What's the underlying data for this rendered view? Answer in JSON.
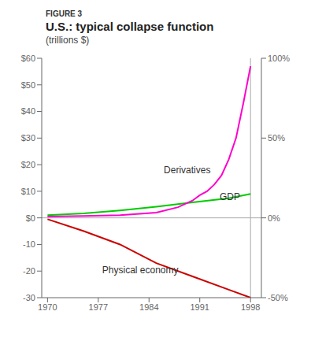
{
  "chart_data": {
    "type": "line",
    "title": "U.S.: typical collapse function",
    "subtitle": "(trillions $)",
    "xlim": [
      1969.2,
      1999.5
    ],
    "xticks": [
      1970,
      1977,
      1984,
      1991,
      1998
    ],
    "ylim": [
      -30,
      60
    ],
    "yticks": [
      -30,
      -20,
      -10,
      {
        "value": 0,
        "label": "$0"
      },
      {
        "value": 10,
        "label": "$10"
      },
      {
        "value": 20,
        "label": "$20"
      },
      {
        "value": 30,
        "label": "$30"
      },
      {
        "value": 40,
        "label": "$40"
      },
      {
        "value": 50,
        "label": "$50"
      },
      {
        "value": 60,
        "label": "$60"
      }
    ],
    "y2lim": [
      -50,
      100
    ],
    "y2ticks": [
      {
        "value": -50,
        "label": "-50%"
      },
      {
        "value": 0,
        "label": "0%"
      },
      {
        "value": 50,
        "label": "50%"
      },
      {
        "value": 100,
        "label": "100%"
      }
    ],
    "grid": false,
    "series": [
      {
        "color": "#00cc00",
        "x": [
          1970,
          1975,
          1980,
          1985,
          1990,
          1995,
          1998
        ],
        "values": [
          1.0,
          1.7,
          2.8,
          4.2,
          5.8,
          7.4,
          9.0
        ]
      },
      {
        "color": "#ff00cc",
        "x": [
          1970,
          1975,
          1980,
          1985,
          1988,
          1990,
          1991,
          1992,
          1993,
          1994,
          1995,
          1996,
          1997,
          1998
        ],
        "values": [
          0.5,
          0.7,
          1.0,
          2.0,
          4.0,
          6.5,
          8.5,
          10.0,
          12.5,
          16.0,
          22.0,
          30.0,
          43.0,
          57.0
        ]
      },
      {
        "color": "#cc0000",
        "x": [
          1970,
          1975,
          1980,
          1985,
          1990,
          1995,
          1998
        ],
        "values": [
          -0.5,
          -5.0,
          -10.0,
          -17.0,
          -22.0,
          -27.0,
          -30.0
        ]
      }
    ],
    "reference_lines": [
      {
        "axis": "y",
        "value": 0,
        "color": "#aaaaaa"
      },
      {
        "axis": "x",
        "value": 1998,
        "color": "#aaaaaa"
      }
    ],
    "annotations": [
      {
        "text": "FIGURE 3"
      },
      {
        "text": "Derivatives",
        "x": 1985.5,
        "y": 18.0
      },
      {
        "text": "GDP",
        "x": 1993.2,
        "y": 8.0
      },
      {
        "text": "Physical economy",
        "x": 1977.0,
        "y": -19.5
      }
    ]
  }
}
